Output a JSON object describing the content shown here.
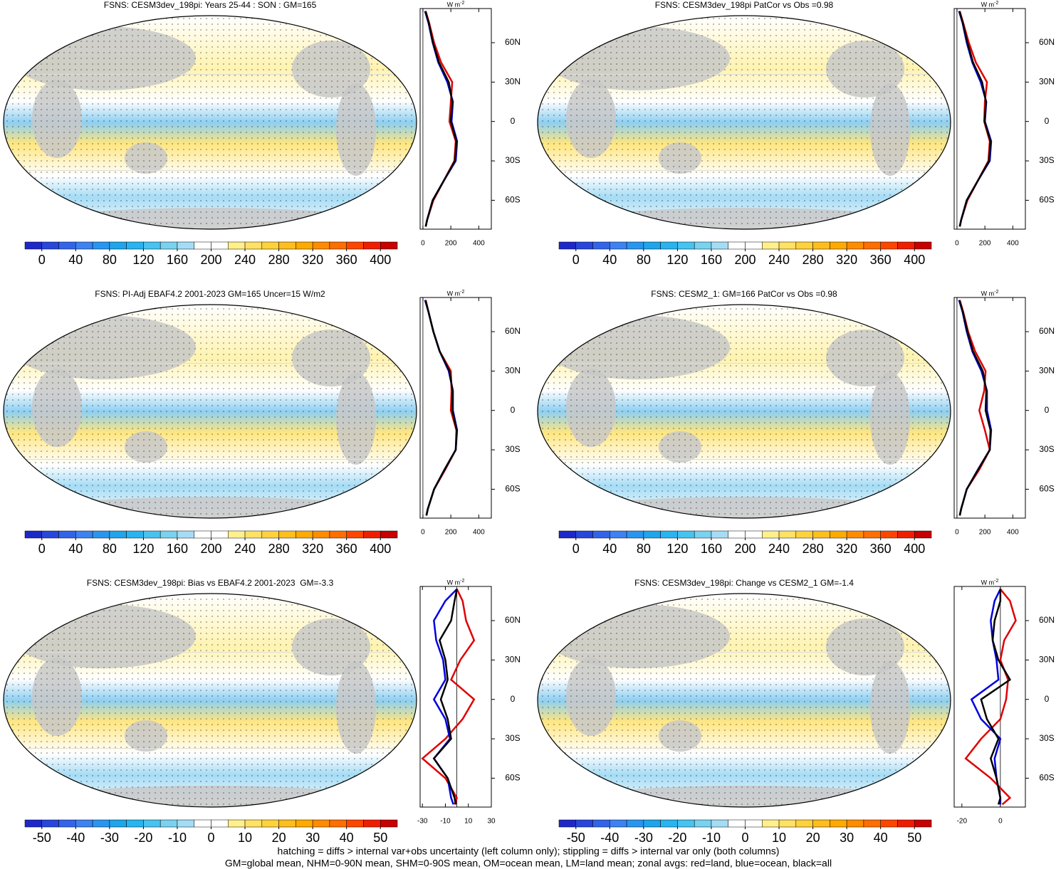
{
  "chart_data": [
    {
      "type": "map-zonal",
      "title": "FSNS: CESM3dev_198pi: Years 25-44 : SON : GM=165",
      "colorbar_lim": [
        -20,
        420
      ],
      "colorbar_ticks": [
        0,
        40,
        80,
        120,
        160,
        200,
        240,
        280,
        320,
        360,
        400
      ],
      "unit": "W m",
      "unit_sup": "-2",
      "lat": [
        84,
        75,
        60,
        45,
        30,
        15,
        0,
        -15,
        -30,
        -45,
        -60,
        -75,
        -80
      ],
      "series": [
        {
          "color": "#e00000",
          "values": [
            20,
            45,
            80,
            130,
            210,
            200,
            190,
            235,
            225,
            150,
            75,
            30,
            20
          ]
        },
        {
          "color": "#0000e0",
          "values": [
            15,
            40,
            70,
            110,
            175,
            215,
            205,
            245,
            235,
            150,
            70,
            30,
            20
          ]
        },
        {
          "color": "#000000",
          "values": [
            18,
            42,
            72,
            115,
            185,
            210,
            200,
            240,
            230,
            150,
            70,
            30,
            20
          ]
        }
      ],
      "xlim": [
        -20,
        490
      ],
      "xticks": [
        0,
        200,
        400
      ],
      "ylim": [
        -82,
        86
      ],
      "yticks": [
        {
          "value": 60,
          "label": "60N"
        },
        {
          "value": 30,
          "label": "30N"
        },
        0,
        {
          "value": -30,
          "label": "30S"
        },
        {
          "value": -60,
          "label": "60S"
        }
      ]
    },
    {
      "type": "map-zonal",
      "title": "FSNS: CESM3dev_198pi PatCor vs Obs =0.98",
      "colorbar_lim": [
        -20,
        420
      ],
      "colorbar_ticks": [
        0,
        40,
        80,
        120,
        160,
        200,
        240,
        280,
        320,
        360,
        400
      ],
      "unit": "W m",
      "unit_sup": "-2",
      "lat": [
        84,
        75,
        60,
        45,
        30,
        15,
        0,
        -15,
        -30,
        -45,
        -60,
        -75,
        -80
      ],
      "series": [
        {
          "color": "#e00000",
          "values": [
            20,
            45,
            85,
            135,
            215,
            200,
            195,
            235,
            225,
            150,
            75,
            30,
            20
          ]
        },
        {
          "color": "#0000e0",
          "values": [
            15,
            40,
            70,
            110,
            170,
            210,
            200,
            245,
            235,
            150,
            70,
            30,
            20
          ]
        },
        {
          "color": "#000000",
          "values": [
            18,
            42,
            75,
            115,
            180,
            208,
            198,
            240,
            230,
            150,
            70,
            30,
            20
          ]
        }
      ],
      "xlim": [
        -20,
        490
      ],
      "xticks": [
        0,
        200,
        400
      ],
      "ylim": [
        -82,
        86
      ],
      "yticks": [
        {
          "value": 60,
          "label": "60N"
        },
        {
          "value": 30,
          "label": "30N"
        },
        0,
        {
          "value": -30,
          "label": "30S"
        },
        {
          "value": -60,
          "label": "60S"
        }
      ]
    },
    {
      "type": "map-zonal",
      "title": "FSNS: PI-Adj EBAF4.2 2001-2023 GM=165 Uncer=15 W/m2",
      "colorbar_lim": [
        -20,
        420
      ],
      "colorbar_ticks": [
        0,
        40,
        80,
        120,
        160,
        200,
        240,
        280,
        320,
        360,
        400
      ],
      "unit": "W m",
      "unit_sup": "-2",
      "lat": [
        84,
        75,
        60,
        45,
        30,
        15,
        0,
        -15,
        -30,
        -45,
        -60,
        -75,
        -80
      ],
      "series": [
        {
          "color": "#e00000",
          "values": [
            20,
            40,
            75,
            120,
            200,
            205,
            200,
            240,
            235,
            160,
            80,
            35,
            25
          ]
        },
        {
          "color": "#0000e0",
          "values": [
            15,
            40,
            75,
            120,
            185,
            215,
            215,
            245,
            235,
            155,
            80,
            35,
            25
          ]
        },
        {
          "color": "#000000",
          "values": [
            18,
            40,
            75,
            120,
            190,
            212,
            210,
            242,
            235,
            155,
            80,
            35,
            25
          ]
        }
      ],
      "xlim": [
        -20,
        490
      ],
      "xticks": [
        0,
        200,
        400
      ],
      "ylim": [
        -82,
        86
      ],
      "yticks": [
        {
          "value": 60,
          "label": "60N"
        },
        {
          "value": 30,
          "label": "30N"
        },
        0,
        {
          "value": -30,
          "label": "30S"
        },
        {
          "value": -60,
          "label": "60S"
        }
      ]
    },
    {
      "type": "map-zonal",
      "title": "FSNS: CESM2_1: GM=166 PatCor vs Obs =0.98",
      "colorbar_lim": [
        -20,
        420
      ],
      "colorbar_ticks": [
        0,
        40,
        80,
        120,
        160,
        200,
        240,
        280,
        320,
        360,
        400
      ],
      "unit": "W m",
      "unit_sup": "-2",
      "lat": [
        84,
        75,
        60,
        45,
        30,
        15,
        0,
        -15,
        -30,
        -45,
        -60,
        -75,
        -80
      ],
      "series": [
        {
          "color": "#e00000",
          "values": [
            20,
            45,
            80,
            130,
            205,
            195,
            160,
            200,
            235,
            160,
            70,
            30,
            20
          ]
        },
        {
          "color": "#0000e0",
          "values": [
            15,
            40,
            70,
            110,
            175,
            215,
            215,
            245,
            235,
            150,
            70,
            30,
            20
          ]
        },
        {
          "color": "#000000",
          "values": [
            18,
            42,
            75,
            115,
            185,
            210,
            205,
            240,
            235,
            152,
            70,
            30,
            20
          ]
        }
      ],
      "xlim": [
        -20,
        490
      ],
      "xticks": [
        0,
        200,
        400
      ],
      "ylim": [
        -82,
        86
      ],
      "yticks": [
        {
          "value": 60,
          "label": "60N"
        },
        {
          "value": 30,
          "label": "30N"
        },
        0,
        {
          "value": -30,
          "label": "30S"
        },
        {
          "value": -60,
          "label": "60S"
        }
      ]
    },
    {
      "type": "map-zonal",
      "title": "FSNS: CESM3dev_198pi: Bias vs EBAF4.2 2001-2023  GM=-3.3",
      "colorbar_lim": [
        -55,
        55
      ],
      "colorbar_ticks": [
        -50,
        -40,
        -30,
        -20,
        -10,
        0,
        10,
        20,
        30,
        40,
        50
      ],
      "unit": "W m",
      "unit_sup": "-2",
      "lat": [
        84,
        75,
        60,
        45,
        30,
        15,
        0,
        -15,
        -30,
        -45,
        -60,
        -75,
        -80
      ],
      "series": [
        {
          "color": "#e00000",
          "values": [
            0,
            5,
            8,
            15,
            3,
            -5,
            15,
            5,
            -10,
            -30,
            -10,
            0,
            -2
          ]
        },
        {
          "color": "#0000e0",
          "values": [
            0,
            -10,
            -20,
            -18,
            -12,
            -10,
            -20,
            -10,
            -6,
            -20,
            -8,
            -5,
            -3
          ]
        },
        {
          "color": "#000000",
          "values": [
            0,
            -2,
            -5,
            -15,
            -10,
            -8,
            -14,
            -8,
            -5,
            -20,
            -8,
            -2,
            -1
          ]
        }
      ],
      "xlim": [
        -32,
        30
      ],
      "xticks": [
        -30,
        -10,
        10,
        30
      ],
      "ylim": [
        -82,
        86
      ],
      "yticks": [
        {
          "value": 60,
          "label": "60N"
        },
        {
          "value": 30,
          "label": "30N"
        },
        0,
        {
          "value": -30,
          "label": "30S"
        },
        {
          "value": -60,
          "label": "60S"
        }
      ]
    },
    {
      "type": "map-zonal",
      "title": "FSNS: CESM3dev_198pi: Change vs CESM2_1 GM=-1.4",
      "colorbar_lim": [
        -55,
        55
      ],
      "colorbar_ticks": [
        -50,
        -40,
        -30,
        -20,
        -10,
        0,
        10,
        20,
        30,
        40,
        50
      ],
      "unit": "W m",
      "unit_sup": "-2",
      "lat": [
        84,
        75,
        60,
        45,
        30,
        15,
        0,
        -15,
        -30,
        -45,
        -60,
        -75,
        -80
      ],
      "series": [
        {
          "color": "#e00000",
          "values": [
            0,
            5,
            8,
            2,
            0,
            4,
            3,
            0,
            -10,
            -18,
            -5,
            5,
            1
          ]
        },
        {
          "color": "#0000e0",
          "values": [
            0,
            -3,
            -5,
            -4,
            -2,
            -1,
            -15,
            -10,
            0,
            -3,
            -2,
            0,
            0
          ]
        },
        {
          "color": "#000000",
          "values": [
            0,
            0,
            -3,
            -4,
            -1,
            5,
            -10,
            -7,
            -1,
            -5,
            -2,
            0,
            -1
          ]
        }
      ],
      "xlim": [
        -24,
        13
      ],
      "xticks": [
        -20,
        0
      ],
      "ylim": [
        -82,
        86
      ],
      "yticks": [
        {
          "value": 60,
          "label": "60N"
        },
        {
          "value": 30,
          "label": "30N"
        },
        0,
        {
          "value": -30,
          "label": "30S"
        },
        {
          "value": -60,
          "label": "60S"
        }
      ]
    }
  ],
  "colorbar_colors": [
    "#1e28c8",
    "#2846dc",
    "#3264ea",
    "#3c82f2",
    "#2896f0",
    "#1ea5eb",
    "#28b4f0",
    "#46c3f0",
    "#78d2f0",
    "#a5dcf5",
    "#ffffff",
    "#ffffff",
    "#fff08c",
    "#ffe164",
    "#ffd23c",
    "#ffbe1e",
    "#ffaa00",
    "#ff8c00",
    "#ff6e00",
    "#ff4600",
    "#f01e00",
    "#c80000"
  ],
  "footer": [
    "hatching = diffs > internal var+obs uncertainty (left column only); stippling = diffs > internal var only (both columns)",
    "GM=global mean, NHM=0-90N mean, SHM=0-90S mean, OM=ocean mean, LM=land mean; zonal avgs: red=land, blue=ocean, black=all"
  ]
}
